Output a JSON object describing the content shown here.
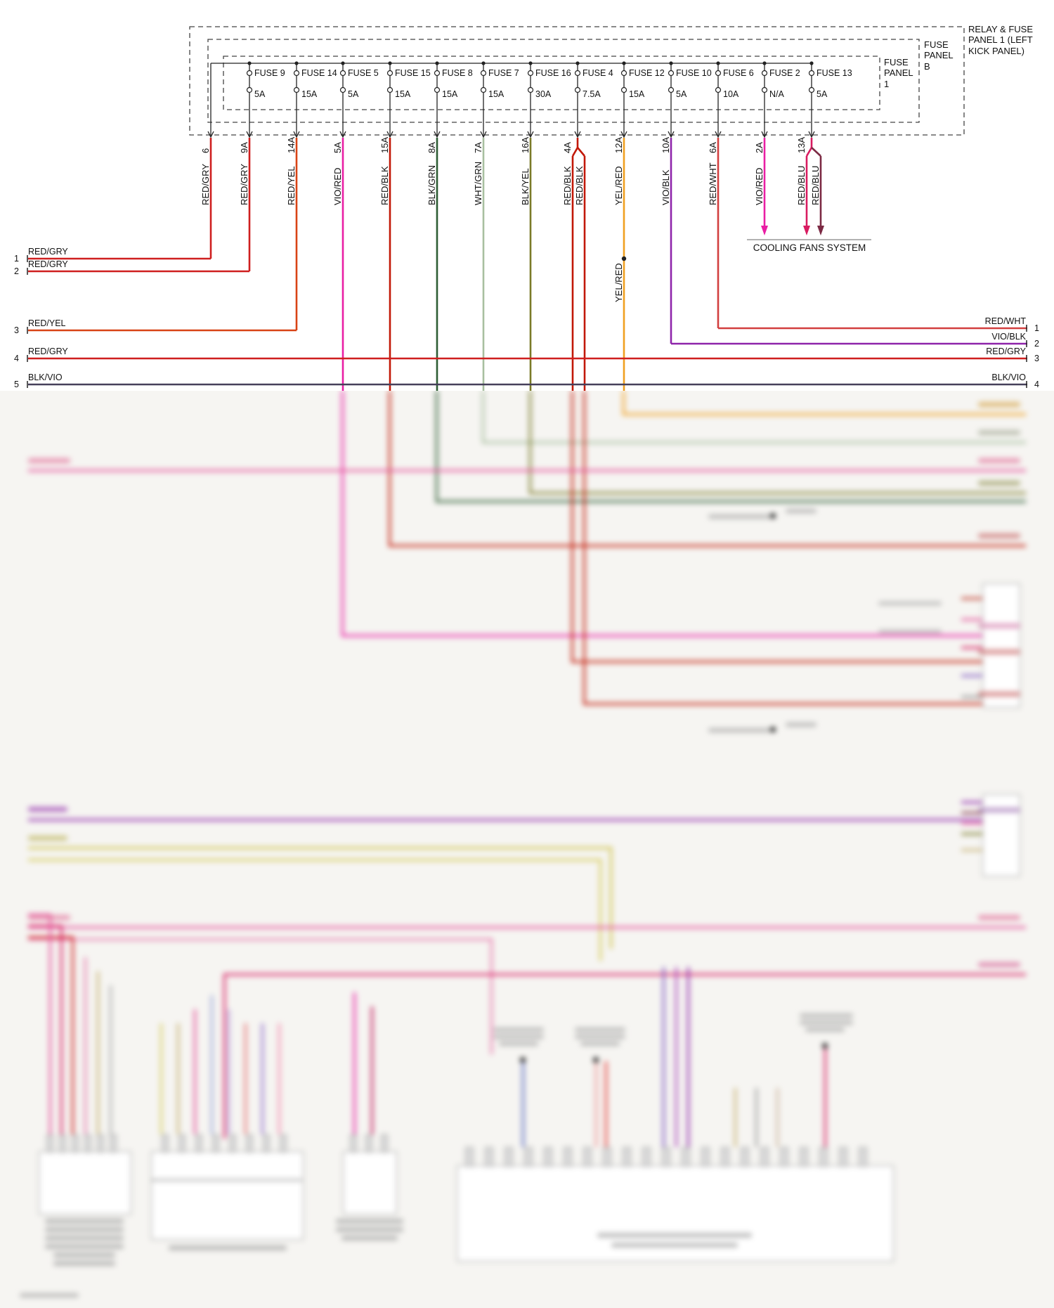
{
  "diagram": {
    "labels": {
      "outer_panel": "RELAY & FUSE PANEL 1 (LEFT KICK PANEL)",
      "panel_b": "FUSE PANEL B",
      "panel_1": "FUSE PANEL 1",
      "cooling": "COOLING FANS SYSTEM",
      "mid_wire": "YEL/RED"
    },
    "feed": {
      "pin": "6",
      "wire": "RED/GRY"
    },
    "fuses": [
      {
        "name": "FUSE 9",
        "amp": "5A",
        "pin": "9A",
        "wires": [
          "RED/GRY"
        ]
      },
      {
        "name": "FUSE 14",
        "amp": "15A",
        "pin": "14A",
        "wires": [
          "RED/YEL"
        ]
      },
      {
        "name": "FUSE 5",
        "amp": "5A",
        "pin": "5A",
        "wires": [
          "VIO/RED"
        ]
      },
      {
        "name": "FUSE 15",
        "amp": "15A",
        "pin": "15A",
        "wires": [
          "RED/BLK"
        ]
      },
      {
        "name": "FUSE 8",
        "amp": "15A",
        "pin": "8A",
        "wires": [
          "BLK/GRN"
        ]
      },
      {
        "name": "FUSE 7",
        "amp": "15A",
        "pin": "7A",
        "wires": [
          "WHT/GRN"
        ]
      },
      {
        "name": "FUSE 16",
        "amp": "30A",
        "pin": "16A",
        "wires": [
          "BLK/YEL"
        ]
      },
      {
        "name": "FUSE 4",
        "amp": "7.5A",
        "pin": "4A",
        "wires": [
          "RED/BLK",
          "RED/BLK"
        ]
      },
      {
        "name": "FUSE 12",
        "amp": "15A",
        "pin": "12A",
        "wires": [
          "YEL/RED"
        ]
      },
      {
        "name": "FUSE 10",
        "amp": "5A",
        "pin": "10A",
        "wires": [
          "VIO/BLK"
        ]
      },
      {
        "name": "FUSE 6",
        "amp": "10A",
        "pin": "6A",
        "wires": [
          "RED/WHT"
        ]
      },
      {
        "name": "FUSE 2",
        "amp": "N/A",
        "pin": "2A",
        "wires": [
          "VIO/RED"
        ]
      },
      {
        "name": "FUSE 13",
        "amp": "5A",
        "pin": "13A",
        "wires": [
          "RED/BLU",
          "RED/BLU"
        ]
      }
    ],
    "left_pins": [
      {
        "n": "1",
        "wire": "RED/GRY"
      },
      {
        "n": "2",
        "wire": "RED/GRY"
      },
      {
        "n": "3",
        "wire": "RED/YEL"
      },
      {
        "n": "4",
        "wire": "RED/GRY"
      },
      {
        "n": "5",
        "wire": "BLK/VIO"
      }
    ],
    "right_pins": [
      {
        "n": "1",
        "wire": "RED/WHT"
      },
      {
        "n": "2",
        "wire": "VIO/BLK"
      },
      {
        "n": "3",
        "wire": "RED/GRY"
      },
      {
        "n": "4",
        "wire": "BLK/VIO"
      }
    ],
    "wire_colors": {
      "RED/GRY": "#cf1f1f",
      "RED/YEL": "#d84315",
      "VIO/RED": "#e91ea4",
      "RED/BLK": "#c21807",
      "BLK/GRN": "#2e5d34",
      "WHT/GRN": "#a8bfa0",
      "BLK/YEL": "#7a7a28",
      "YEL/RED": "#f0a020",
      "VIO/BLK": "#8e24aa",
      "RED/WHT": "#d23f3f",
      "RED/BLU": "#d81b60",
      "RED/BLU_ALT": "#7c2a44",
      "BLK/VIO": "#46405a"
    }
  }
}
